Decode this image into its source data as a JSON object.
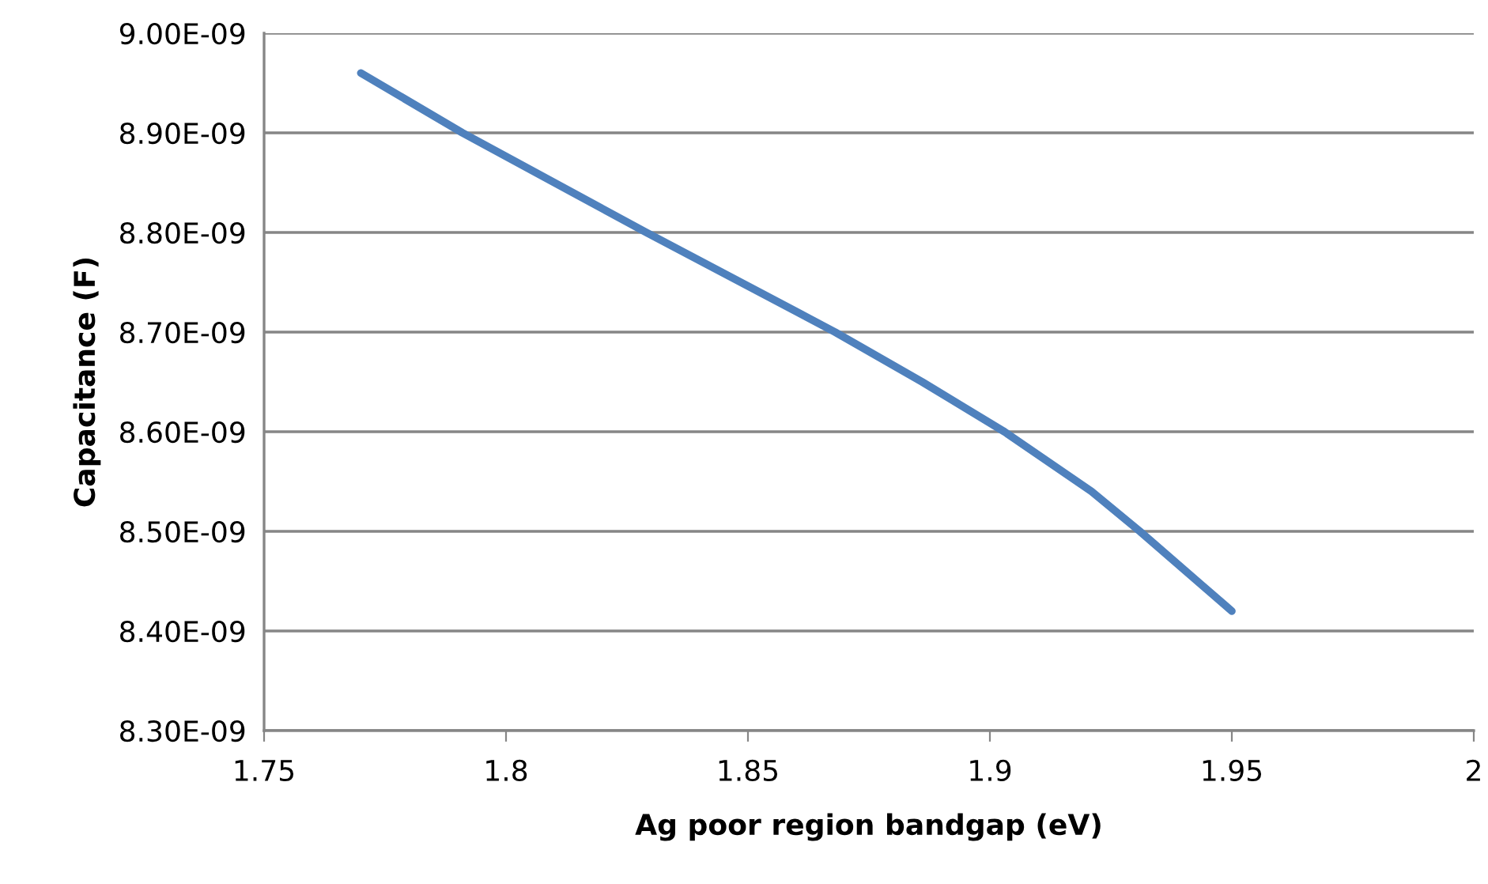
{
  "chart_data": {
    "type": "line",
    "xlabel": "Ag poor region bandgap (eV)",
    "ylabel": "Capacitance (F)",
    "series": [
      {
        "color": "#4f81bd",
        "x": [
          1.77,
          1.791,
          1.829,
          1.868,
          1.886,
          1.903,
          1.921,
          1.931,
          1.95
        ],
        "values": [
          8.96e-09,
          8.9e-09,
          8.8e-09,
          8.7e-09,
          8.65e-09,
          8.6e-09,
          8.54e-09,
          8.5e-09,
          8.42e-09
        ]
      }
    ],
    "xlim": [
      1.75,
      2
    ],
    "xticks": [
      1.75,
      1.8,
      1.85,
      1.9,
      1.95,
      2
    ],
    "ylim": [
      8.3e-09,
      9e-09
    ],
    "yticks": [
      {
        "value": 8.3e-09,
        "label": "8.30E-09"
      },
      {
        "value": 8.4e-09,
        "label": "8.40E-09"
      },
      {
        "value": 8.5e-09,
        "label": "8.50E-09"
      },
      {
        "value": 8.6e-09,
        "label": "8.60E-09"
      },
      {
        "value": 8.7e-09,
        "label": "8.70E-09"
      },
      {
        "value": 8.8e-09,
        "label": "8.80E-09"
      },
      {
        "value": 8.9e-09,
        "label": "8.90E-09"
      },
      {
        "value": 9e-09,
        "label": "9.00E-09"
      }
    ],
    "grid": "y",
    "marker": "none",
    "line_style": "solid"
  }
}
